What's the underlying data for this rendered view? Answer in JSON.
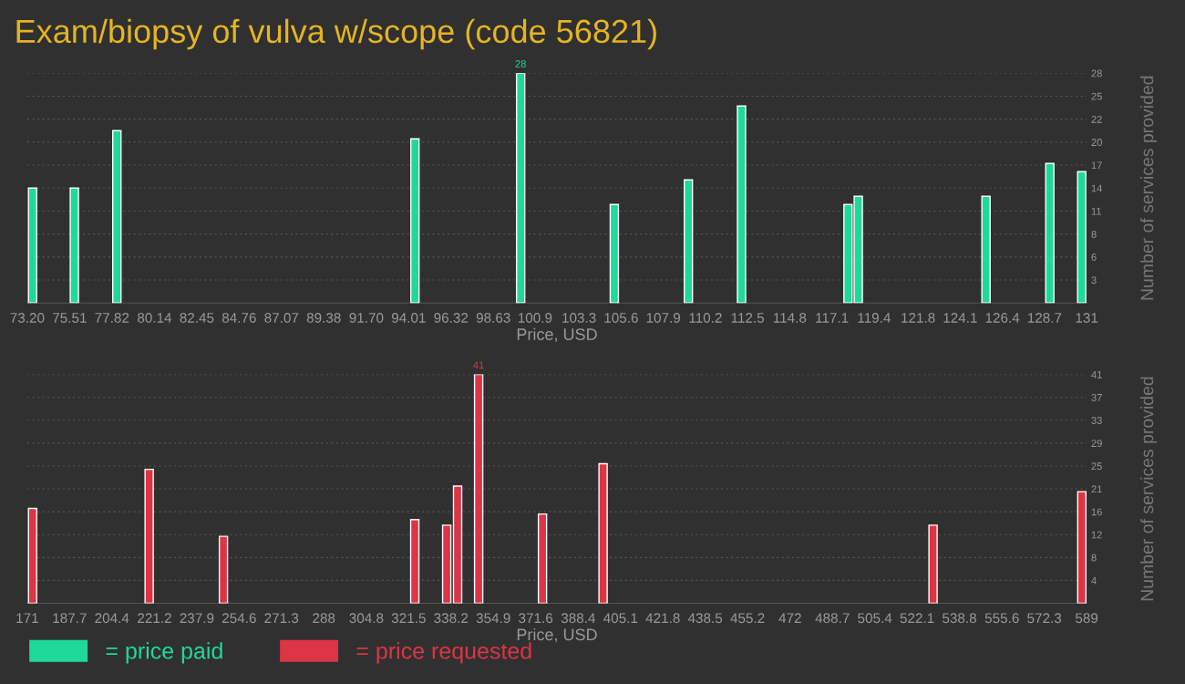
{
  "chart_data": [
    {
      "type": "bar",
      "title": "Exam/biopsy of vulva w/scope (code 56821)",
      "xlabel": "Price, USD",
      "ylabel": "Number of services provided",
      "x": [
        73.49,
        75.77,
        78.09,
        94.35,
        100.12,
        105.23,
        109.27,
        112.17,
        117.98,
        118.54,
        125.51,
        128.99,
        130.73
      ],
      "series": [
        {
          "name": "= price paid",
          "color": "#1fd99b",
          "values": [
            14,
            14,
            21,
            20,
            28,
            12,
            15,
            24,
            12,
            13,
            13,
            17,
            16
          ],
          "value_labels": [
            null,
            null,
            null,
            null,
            "28",
            null,
            null,
            null,
            null,
            null,
            null,
            null,
            null
          ]
        }
      ],
      "xlim": [
        73.2,
        131
      ],
      "xticks": [
        {
          "value": 73.2,
          "label": "73.20"
        },
        75.51,
        77.82,
        80.14,
        82.45,
        84.76,
        87.07,
        89.38,
        {
          "value": 91.7,
          "label": "91.70"
        },
        94.01,
        96.32,
        98.63,
        100.9,
        103.3,
        105.6,
        107.9,
        110.2,
        112.5,
        114.8,
        117.1,
        119.4,
        121.8,
        124.1,
        126.4,
        128.7,
        131
      ],
      "ylim": [
        0,
        28
      ],
      "yticks": [
        {
          "value": 2.8,
          "label": "3"
        },
        {
          "value": 5.6,
          "label": "6"
        },
        {
          "value": 8.4,
          "label": "8"
        },
        {
          "value": 11.2,
          "label": "11"
        },
        {
          "value": 14,
          "label": "14"
        },
        {
          "value": 16.8,
          "label": "17"
        },
        {
          "value": 19.6,
          "label": "20"
        },
        {
          "value": 22.4,
          "label": "22"
        },
        {
          "value": 25.2,
          "label": "25"
        },
        28
      ],
      "grid": "y",
      "legend": "bottom left"
    },
    {
      "type": "bar",
      "xlabel": "Price, USD",
      "ylabel": "Number of services provided",
      "x": [
        173.1,
        219.1,
        248.4,
        323.9,
        336.5,
        340.8,
        349.1,
        374.3,
        398.2,
        528.4,
        587.1
      ],
      "series": [
        {
          "name": "= price requested",
          "color": "#dc3545",
          "values": [
            17,
            24,
            12,
            15,
            14,
            21,
            41,
            16,
            25,
            14,
            20
          ],
          "value_labels": [
            null,
            null,
            null,
            null,
            null,
            null,
            "41",
            null,
            null,
            null,
            null
          ]
        }
      ],
      "xlim": [
        171,
        589
      ],
      "xticks": [
        171,
        187.7,
        204.4,
        221.2,
        237.9,
        254.6,
        271.3,
        288,
        304.8,
        321.5,
        338.2,
        354.9,
        371.6,
        388.4,
        405.1,
        421.8,
        438.5,
        455.2,
        472,
        488.7,
        505.4,
        522.1,
        538.8,
        555.6,
        572.3,
        589
      ],
      "ylim": [
        0,
        41
      ],
      "yticks": [
        {
          "value": 4.1,
          "label": "4"
        },
        {
          "value": 8.2,
          "label": "8"
        },
        {
          "value": 12.3,
          "label": "12"
        },
        {
          "value": 16.4,
          "label": "16"
        },
        {
          "value": 20.5,
          "label": "21"
        },
        {
          "value": 24.6,
          "label": "25"
        },
        {
          "value": 28.7,
          "label": "29"
        },
        {
          "value": 32.8,
          "label": "33"
        },
        {
          "value": 36.9,
          "label": "37"
        },
        41
      ],
      "grid": "y",
      "legend": "bottom left"
    }
  ]
}
